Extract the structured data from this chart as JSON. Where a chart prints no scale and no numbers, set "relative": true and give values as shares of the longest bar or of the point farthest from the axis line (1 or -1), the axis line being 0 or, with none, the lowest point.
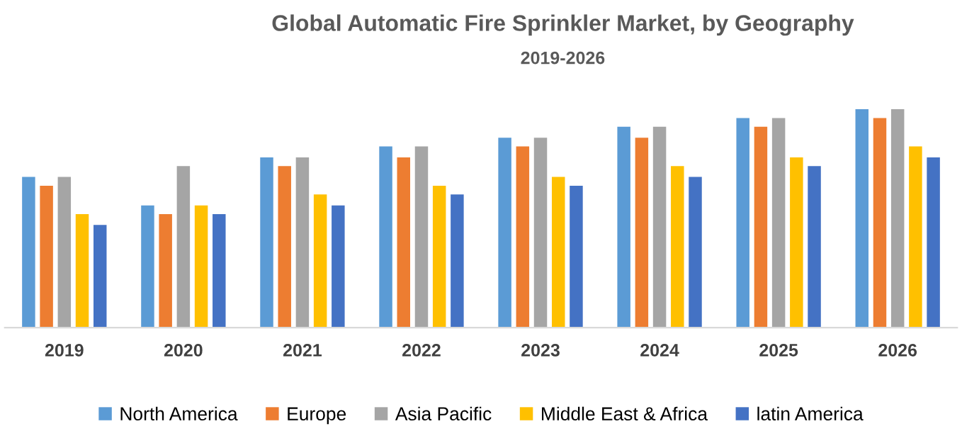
{
  "chart_data": {
    "type": "bar",
    "title": "Global Automatic Fire Sprinkler Market, by Geography",
    "subtitle": "2019-2026",
    "relative": true,
    "categories": [
      "2019",
      "2020",
      "2021",
      "2022",
      "2023",
      "2024",
      "2025",
      "2026"
    ],
    "series": [
      {
        "name": "North America",
        "color": "#5b9bd5",
        "values": [
          0.69,
          0.56,
          0.78,
          0.83,
          0.87,
          0.92,
          0.96,
          1
        ]
      },
      {
        "name": "Europe",
        "color": "#ed7d31",
        "values": [
          0.65,
          0.52,
          0.74,
          0.78,
          0.83,
          0.87,
          0.92,
          0.96
        ]
      },
      {
        "name": "Asia Pacific",
        "color": "#a5a5a5",
        "values": [
          0.69,
          0.74,
          0.78,
          0.83,
          0.87,
          0.92,
          0.96,
          1
        ]
      },
      {
        "name": "Middle East & Africa",
        "color": "#ffc000",
        "values": [
          0.52,
          0.56,
          0.61,
          0.65,
          0.69,
          0.74,
          0.78,
          0.83
        ]
      },
      {
        "name": "latin America",
        "color": "#4472c4",
        "values": [
          0.47,
          0.52,
          0.56,
          0.61,
          0.65,
          0.69,
          0.74,
          0.78
        ]
      }
    ],
    "legend": "bottom",
    "grid": false
  }
}
